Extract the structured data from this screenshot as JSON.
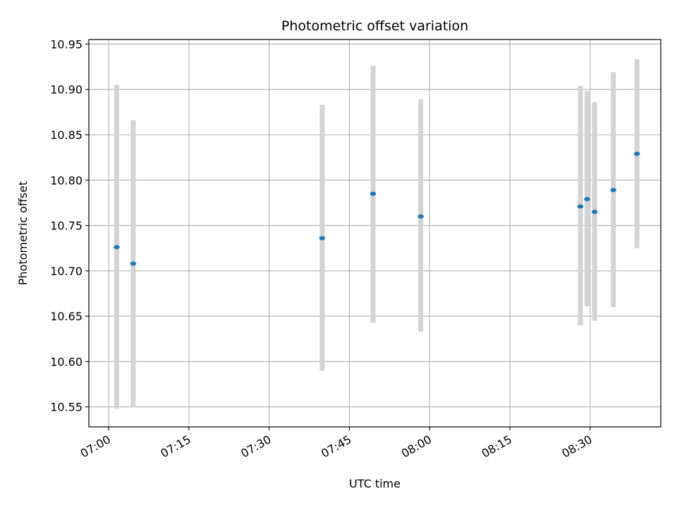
{
  "chart_data": {
    "type": "scatter",
    "title": "Photometric offset variation",
    "xlabel": "UTC time",
    "ylabel": "Photometric offset",
    "x_tick_labels": [
      "07:00",
      "07:15",
      "07:30",
      "07:45",
      "08:00",
      "08:15",
      "08:30"
    ],
    "x_tick_minutes": [
      0,
      15,
      30,
      45,
      60,
      75,
      90
    ],
    "xlim_minutes": [
      -3.7,
      103.2
    ],
    "y_ticks": [
      10.55,
      10.6,
      10.65,
      10.7,
      10.75,
      10.8,
      10.85,
      10.9,
      10.95
    ],
    "y_tick_labels": [
      "10.55",
      "10.60",
      "10.65",
      "10.70",
      "10.75",
      "10.80",
      "10.85",
      "10.90",
      "10.95"
    ],
    "ylim": [
      10.528,
      10.955
    ],
    "grid": true,
    "colors": {
      "point": "#1f77b4",
      "error_bar": "#d3d3d3",
      "grid": "#b0b0b0"
    },
    "points": [
      {
        "t": "07:01:30",
        "y": 10.726,
        "low": 10.548,
        "high": 10.905
      },
      {
        "t": "07:04:35",
        "y": 10.708,
        "low": 10.55,
        "high": 10.866
      },
      {
        "t": "07:39:55",
        "y": 10.736,
        "low": 10.59,
        "high": 10.883
      },
      {
        "t": "07:49:25",
        "y": 10.785,
        "low": 10.643,
        "high": 10.926
      },
      {
        "t": "07:58:20",
        "y": 10.76,
        "low": 10.633,
        "high": 10.889
      },
      {
        "t": "08:28:10",
        "y": 10.771,
        "low": 10.64,
        "high": 10.904
      },
      {
        "t": "08:29:25",
        "y": 10.779,
        "low": 10.661,
        "high": 10.898
      },
      {
        "t": "08:30:50",
        "y": 10.765,
        "low": 10.645,
        "high": 10.886
      },
      {
        "t": "08:34:20",
        "y": 10.789,
        "low": 10.66,
        "high": 10.919
      },
      {
        "t": "08:38:45",
        "y": 10.829,
        "low": 10.725,
        "high": 10.933
      }
    ]
  }
}
